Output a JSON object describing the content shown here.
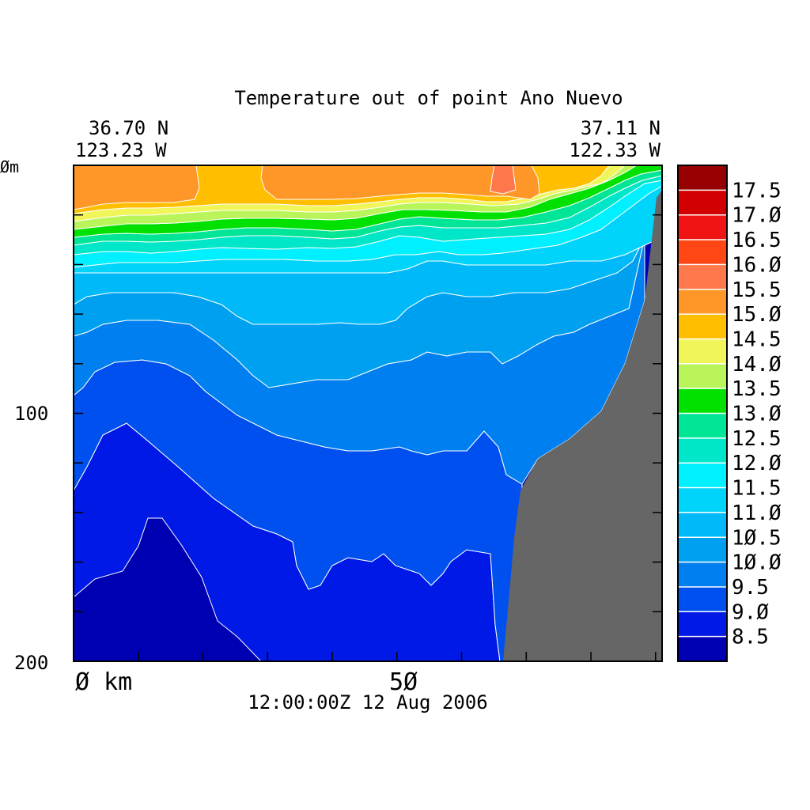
{
  "chart_data": {
    "type": "heatmap",
    "title": "Temperature out of point Ano Nuevo",
    "left_coord": {
      "lat": "36.70 N",
      "lon": "123.23 W"
    },
    "right_coord": {
      "lat": "37.11 N",
      "lon": "122.33 W"
    },
    "timestamp": "12:00:00Z  12 Aug 2006",
    "xlabel_start": "Ø km",
    "x_tick_label": "5Ø",
    "y_tick_labels": {
      "top": "Øm",
      "mid": "100",
      "bottom": "200"
    },
    "xlim": [
      0,
      91
    ],
    "ylim": [
      0,
      200
    ],
    "y_inverted": true,
    "land_color": "#666666",
    "colorbar": {
      "colors": [
        "#0000b3",
        "#0019e6",
        "#0050f0",
        "#0080f0",
        "#00a0f0",
        "#00b9f8",
        "#00d4fa",
        "#00f0ff",
        "#00e6c8",
        "#00e696",
        "#00e100",
        "#b9f55a",
        "#f0f55a",
        "#ffbe00",
        "#ff9628",
        "#ff784b",
        "#ff4614",
        "#f01414",
        "#d20000",
        "#960000"
      ],
      "labels": [
        "8.5",
        "9.Ø",
        "9.5",
        "1Ø.Ø",
        "1Ø.5",
        "11.Ø",
        "11.5",
        "12.Ø",
        "12.5",
        "13.Ø",
        "13.5",
        "14.Ø",
        "14.5",
        "15.Ø",
        "15.5",
        "16.Ø",
        "16.5",
        "17.Ø",
        "17.5"
      ]
    }
  }
}
